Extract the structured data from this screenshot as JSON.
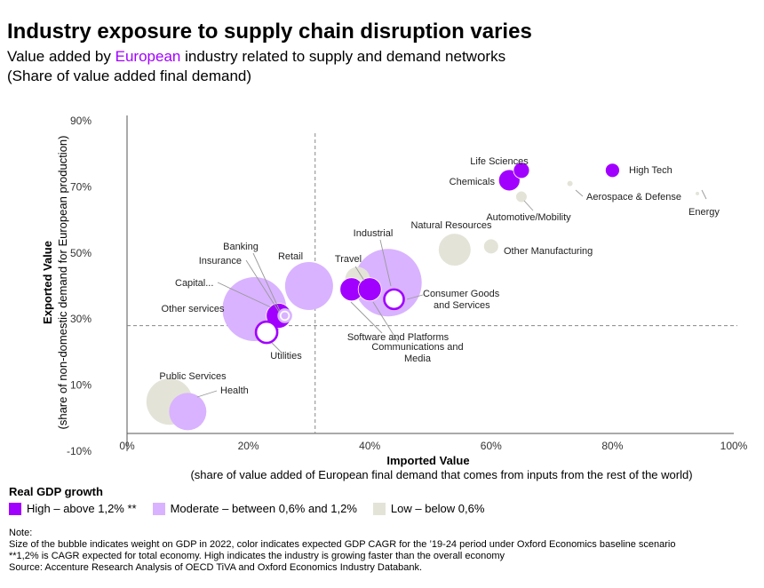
{
  "header": {
    "title": "Industry exposure to supply chain disruption varies",
    "subtitle_pre": "Value added by ",
    "subtitle_highlight": "European",
    "subtitle_post": " industry related to supply and demand networks",
    "subtitle_line2": "(Share of value added final demand)"
  },
  "colors": {
    "high": "#a100ff",
    "moderate": "#d9b3ff",
    "low": "#e4e3d8",
    "highlight_text": "#a100ff"
  },
  "legend": {
    "title": "Real GDP growth",
    "items": [
      {
        "key": "high",
        "label": "High – above 1,2% **"
      },
      {
        "key": "moderate",
        "label": "Moderate – between 0,6% and 1,2%"
      },
      {
        "key": "low",
        "label": "Low – below 0,6%"
      }
    ]
  },
  "notes": {
    "label": "Note:",
    "line1": "Size of the bubble indicates weight on GDP in 2022, color indicates expected GDP CAGR for the ’19-24 period under Oxford Economics baseline scenario",
    "line2": "**1,2% is CAGR expected for total economy. High indicates the industry is growing faster than the overall economy",
    "line3": "Source: Accenture Research Analysis of OECD TiVA and Oxford Economics Industry Databank."
  },
  "chart_data": {
    "type": "scatter",
    "xlabel": "Imported Value",
    "xlabel_sub": "(share of value added of European final demand that comes from inputs from the rest of the world)",
    "ylabel": "Exported Value",
    "ylabel_sub": "(share of non-domestic demand for European production)",
    "xlim": [
      0,
      100
    ],
    "ylim": [
      -10,
      90
    ],
    "x_ticks": [
      0,
      20,
      40,
      60,
      80,
      100
    ],
    "x_tick_labels": [
      "0%",
      "20%",
      "40%",
      "60%",
      "80%",
      "100%"
    ],
    "y_ticks": [
      -10,
      10,
      30,
      50,
      70,
      90
    ],
    "y_tick_labels": [
      "-10%",
      "10%",
      "30%",
      "50%",
      "70%",
      "90%"
    ],
    "reference_lines": {
      "x": 31,
      "y": 28
    },
    "grid": false,
    "points": [
      {
        "name": "Life Sciences",
        "x": 65,
        "y": 75,
        "size": 9,
        "growth": "high",
        "filled": true
      },
      {
        "name": "Chemicals",
        "x": 63,
        "y": 72,
        "size": 12,
        "growth": "high",
        "filled": true
      },
      {
        "name": "High Tech",
        "x": 80,
        "y": 75,
        "size": 8,
        "growth": "high",
        "filled": true
      },
      {
        "name": "Aerospace & Defense",
        "x": 73,
        "y": 71,
        "size": 3,
        "growth": "low",
        "filled": true
      },
      {
        "name": "Energy",
        "x": 94,
        "y": 68,
        "size": 2,
        "growth": "low",
        "filled": true
      },
      {
        "name": "Automotive/Mobility",
        "x": 65,
        "y": 67,
        "size": 6,
        "growth": "low",
        "filled": true
      },
      {
        "name": "Natural Resources",
        "x": 54,
        "y": 51,
        "size": 18,
        "growth": "low",
        "filled": true
      },
      {
        "name": "Other Manufacturing",
        "x": 60,
        "y": 52,
        "size": 8,
        "growth": "low",
        "filled": true
      },
      {
        "name": "Industrial",
        "x": 43,
        "y": 41,
        "size": 38,
        "growth": "moderate",
        "filled": true
      },
      {
        "name": "Travel",
        "x": 38,
        "y": 42,
        "size": 14,
        "growth": "low",
        "filled": true
      },
      {
        "name": "Consumer Goods and Services",
        "x": 44,
        "y": 36,
        "size": 11,
        "growth": "high",
        "filled": false
      },
      {
        "name": "Software and Platforms",
        "x": 37,
        "y": 39,
        "size": 13,
        "growth": "high",
        "filled": true
      },
      {
        "name": "Communications and Media",
        "x": 40,
        "y": 39,
        "size": 13,
        "growth": "high",
        "filled": true
      },
      {
        "name": "Retail",
        "x": 30,
        "y": 40,
        "size": 27,
        "growth": "moderate",
        "filled": true
      },
      {
        "name": "Other services",
        "x": 21,
        "y": 33,
        "size": 36,
        "growth": "moderate",
        "filled": true
      },
      {
        "name": "Capital...",
        "x": 25,
        "y": 31,
        "size": 14,
        "growth": "high",
        "filled": true
      },
      {
        "name": "Banking",
        "x": 26,
        "y": 31,
        "size": 7,
        "growth": "moderate",
        "filled": false
      },
      {
        "name": "Insurance",
        "x": 26,
        "y": 31,
        "size": 4,
        "growth": "moderate",
        "filled": true
      },
      {
        "name": "Utilities",
        "x": 23,
        "y": 26,
        "size": 12,
        "growth": "high",
        "filled": false
      },
      {
        "name": "Public Services",
        "x": 7,
        "y": 5,
        "size": 26,
        "growth": "low",
        "filled": true
      },
      {
        "name": "Health",
        "x": 10,
        "y": 2,
        "size": 21,
        "growth": "moderate",
        "filled": true
      }
    ]
  }
}
